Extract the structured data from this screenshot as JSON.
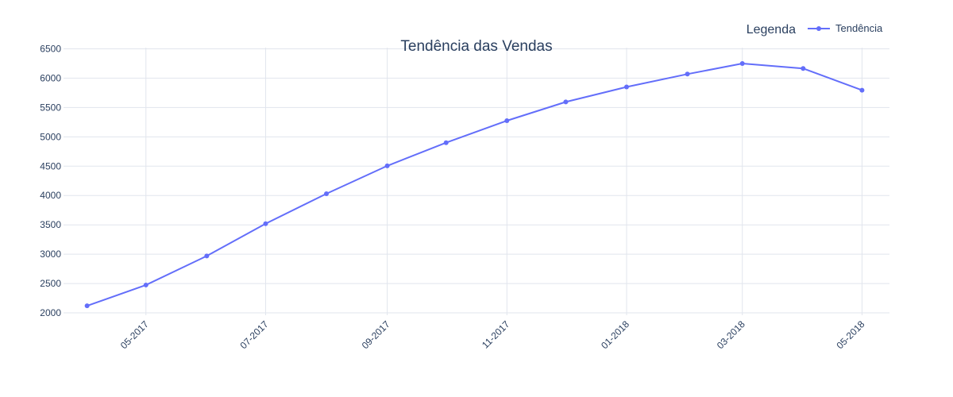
{
  "chart_data": {
    "type": "line",
    "title": "Tendência das Vendas",
    "xlabel": "",
    "ylabel": "",
    "x_dates": [
      "2017-04-01",
      "2017-05-01",
      "2017-06-01",
      "2017-07-01",
      "2017-08-01",
      "2017-09-01",
      "2017-10-01",
      "2017-11-01",
      "2017-12-01",
      "2018-01-01",
      "2018-02-01",
      "2018-03-01",
      "2018-04-01",
      "2018-05-01"
    ],
    "xlim": [
      "2017-03-20",
      "2018-05-15"
    ],
    "x_ticks": [
      "2017-05-01",
      "2017-07-01",
      "2017-09-01",
      "2017-11-01",
      "2018-01-01",
      "2018-03-01",
      "2018-05-01"
    ],
    "x_tick_labels": [
      "05-2017",
      "07-2017",
      "09-2017",
      "11-2017",
      "01-2018",
      "03-2018",
      "05-2018"
    ],
    "ylim": [
      1960,
      6520
    ],
    "y_ticks": [
      2000,
      2500,
      3000,
      3500,
      4000,
      4500,
      5000,
      5500,
      6000,
      6500
    ],
    "y_tick_labels": [
      "2000",
      "2500",
      "3000",
      "3500",
      "4000",
      "4500",
      "5000",
      "5500",
      "6000",
      "6500"
    ],
    "grid": true,
    "series": [
      {
        "name": "Tendência",
        "color": "#636efa",
        "values": [
          2120,
          2475,
          2970,
          3520,
          4030,
          4505,
          4900,
          5275,
          5595,
          5850,
          6070,
          6250,
          6165,
          5795
        ]
      }
    ],
    "legend": {
      "title": "Legenda",
      "placement": "top-right",
      "entries": [
        "Tendência"
      ]
    }
  }
}
